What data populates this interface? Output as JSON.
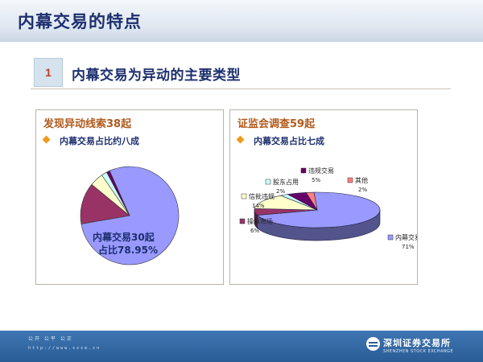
{
  "header": {
    "title": "内幕交易的特点"
  },
  "section": {
    "number": "1",
    "title": "内幕交易为异动的主要类型"
  },
  "left_panel": {
    "title": "发现异动线索38起",
    "bullet": "内幕交易占比约八成",
    "label_line1": "内幕交易30起",
    "label_line2": "占比78.95%"
  },
  "right_panel": {
    "title": "证监会调查59起",
    "bullet": "内幕交易占比七成"
  },
  "footer": {
    "line1": "公开 公平 公正",
    "line2": "http://www.szse.cn",
    "logo_cn": "深圳证券交易所",
    "logo_en": "SHENZHEN STOCK EXCHANGE"
  },
  "chart_data": [
    {
      "type": "pie",
      "title": "发现异动线索38起",
      "slices": [
        {
          "label": "内幕交易",
          "value": 30,
          "color": "#9999ff"
        },
        {
          "label": "",
          "value": 5.2,
          "color": "#993366"
        },
        {
          "label": "",
          "value": 1.7,
          "color": "#ffffcc"
        },
        {
          "label": "",
          "value": 0.7,
          "color": "#ccffff"
        },
        {
          "label": "",
          "value": 0.4,
          "color": "#660066"
        }
      ]
    },
    {
      "type": "pie",
      "title": "证监会调查59起",
      "slices": [
        {
          "label": "内幕交易",
          "value": 71,
          "color": "#9999ff",
          "display": "71%"
        },
        {
          "label": "操纵市场",
          "value": 6,
          "color": "#993366",
          "display": "6%"
        },
        {
          "label": "信批违规",
          "value": 14,
          "color": "#ffffcc",
          "display": "14%"
        },
        {
          "label": "股东占用",
          "value": 2,
          "color": "#ccffff",
          "display": "2%"
        },
        {
          "label": "违规交易",
          "value": 5,
          "color": "#660066",
          "display": "5%"
        },
        {
          "label": "其他",
          "value": 2,
          "color": "#ff8080",
          "display": "2%"
        }
      ]
    }
  ]
}
